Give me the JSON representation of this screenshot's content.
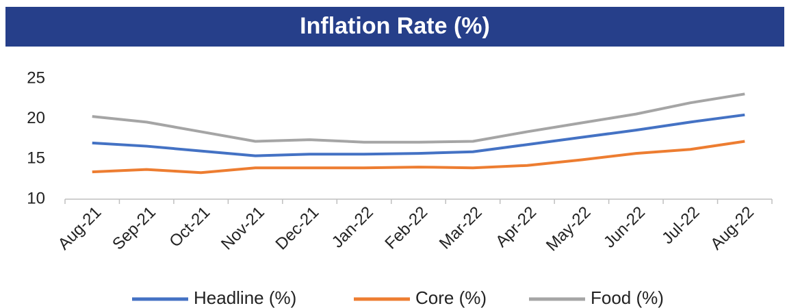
{
  "chart_data": {
    "type": "line",
    "title": "Inflation Rate (%)",
    "categories": [
      "Aug-21",
      "Sep-21",
      "Oct-21",
      "Nov-21",
      "Dec-21",
      "Jan-22",
      "Feb-22",
      "Mar-22",
      "Apr-22",
      "May-22",
      "Jun-22",
      "Jul-22",
      "Aug-22"
    ],
    "series": [
      {
        "name": "Headline (%)",
        "color": "#4472c4",
        "values": [
          17.0,
          16.6,
          16.0,
          15.4,
          15.6,
          15.6,
          15.7,
          15.9,
          16.8,
          17.7,
          18.6,
          19.6,
          20.5
        ]
      },
      {
        "name": "Core (%)",
        "color": "#ed7d31",
        "values": [
          13.4,
          13.7,
          13.3,
          13.9,
          13.9,
          13.9,
          14.0,
          13.9,
          14.2,
          14.9,
          15.7,
          16.2,
          17.2
        ]
      },
      {
        "name": "Food (%)",
        "color": "#a5a5a5",
        "values": [
          20.3,
          19.6,
          18.4,
          17.2,
          17.4,
          17.1,
          17.1,
          17.2,
          18.4,
          19.5,
          20.6,
          22.0,
          23.1
        ]
      }
    ],
    "ylim": [
      10,
      25
    ],
    "yticks": [
      10,
      15,
      20,
      25
    ],
    "grid": false,
    "legend": "bottom"
  }
}
